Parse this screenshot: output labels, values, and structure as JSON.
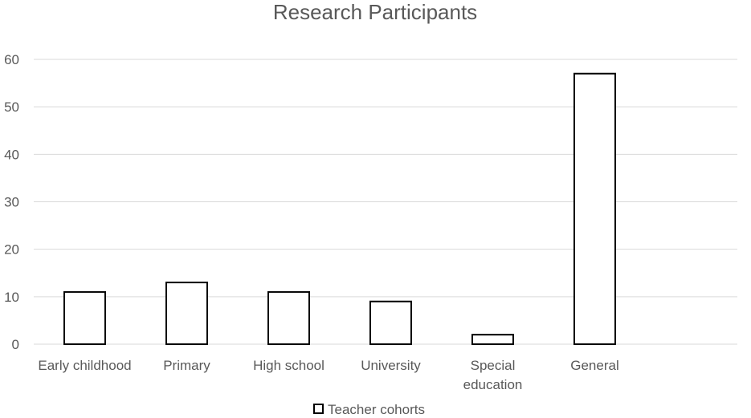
{
  "chart_data": {
    "type": "bar",
    "title": "Research Participants",
    "categories": [
      "Early childhood",
      "Primary",
      "High school",
      "University",
      "Special education",
      "General"
    ],
    "category_lines": [
      [
        "Early childhood"
      ],
      [
        "Primary"
      ],
      [
        "High school"
      ],
      [
        "University"
      ],
      [
        "Special",
        "education"
      ],
      [
        "General"
      ]
    ],
    "series": [
      {
        "name": "Teacher cohorts",
        "values": [
          11,
          13,
          11,
          9,
          2,
          57
        ]
      }
    ],
    "ylim": [
      0,
      60
    ],
    "yticks": [
      0,
      10,
      20,
      30,
      40,
      50,
      60
    ],
    "grid": true,
    "legend_position": "bottom",
    "colors": {
      "bar_fill": "#ffffff",
      "bar_stroke": "#000000",
      "grid": "#d9d9d9",
      "text": "#595959"
    }
  }
}
